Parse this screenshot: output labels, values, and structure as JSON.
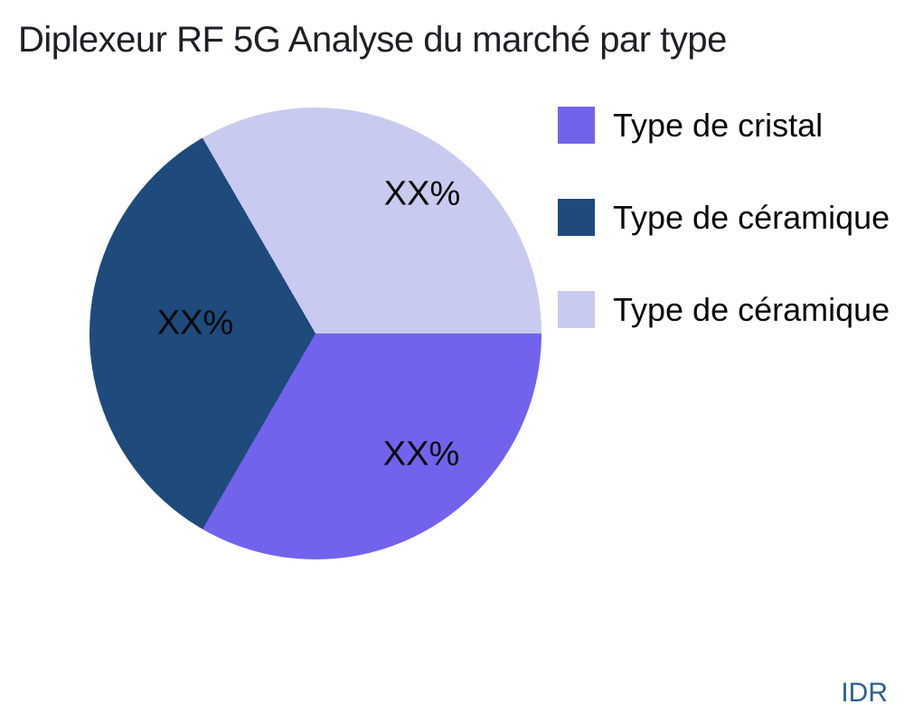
{
  "title": "Diplexeur RF 5G Analyse du marché par type",
  "watermark": "IDR",
  "colors": {
    "slice_cristal": "#7163EC",
    "slice_ceramique_dark": "#1E4A7C",
    "slice_ceramique_light": "#C8CAF0",
    "title_text": "#1F1F28",
    "watermark_text": "#2F608F",
    "background": "#FFFFFF"
  },
  "legend": {
    "position": "right",
    "items": [
      {
        "label": "Type de cristal",
        "color": "#7163EC"
      },
      {
        "label": "Type de céramique",
        "color": "#1E4A7C"
      },
      {
        "label": "Type de céramique",
        "color": "#C8CAF0"
      }
    ]
  },
  "chart_data": {
    "type": "pie",
    "title": "Diplexeur RF 5G Analyse du marché par type",
    "labels": [
      "Type de cristal",
      "Type de céramique",
      "Type de céramique"
    ],
    "values": [
      33.33,
      33.33,
      33.34
    ],
    "value_labels": [
      "XX%",
      "XX%",
      "XX%"
    ],
    "colors": [
      "#7163EC",
      "#1E4A7C",
      "#C8CAF0"
    ],
    "start_angle_deg": 90,
    "direction": "clockwise",
    "legend_position": "right",
    "grid": false
  }
}
